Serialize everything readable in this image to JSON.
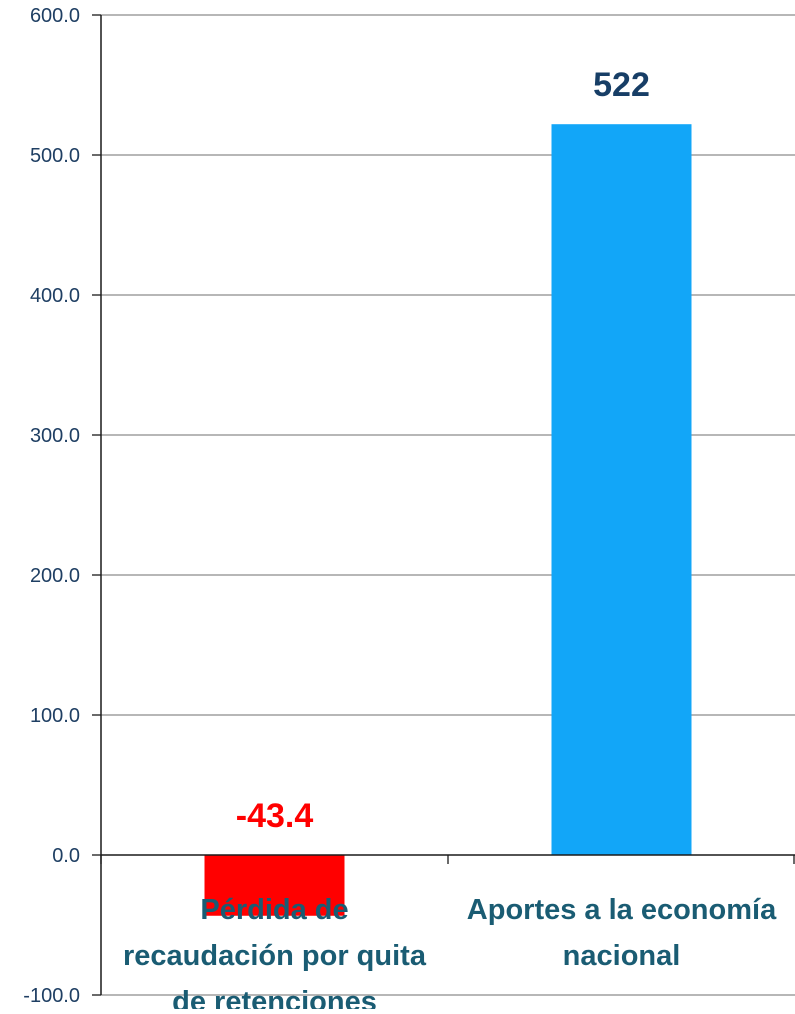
{
  "chart_data": {
    "type": "bar",
    "title": "",
    "xlabel": "",
    "ylabel": "",
    "ylim": [
      -100,
      600
    ],
    "yticks": [
      600,
      500,
      400,
      300,
      200,
      100,
      0,
      -100
    ],
    "ytick_labels": [
      "600.0",
      "500.0",
      "400.0",
      "300.0",
      "200.0",
      "100.0",
      "0.0",
      "-100.0"
    ],
    "grid": true,
    "legend": "none",
    "categories": [
      [
        "Pérdida de",
        "recaudación por quita",
        "de retenciones"
      ],
      [
        "Aportes a la economía",
        "nacional"
      ]
    ],
    "values": [
      -43.4,
      522
    ],
    "data_labels": [
      "-43.4",
      "522"
    ],
    "bar_colors": [
      "#ff0000",
      "#12a6f8"
    ],
    "data_label_colors": [
      "#ff0000",
      "#173e66"
    ]
  },
  "colors": {
    "axis": "#1a1a1a",
    "grid": "#8c8c8c",
    "tick_text": "#1f3f63",
    "category_text": "#1a5c73"
  }
}
